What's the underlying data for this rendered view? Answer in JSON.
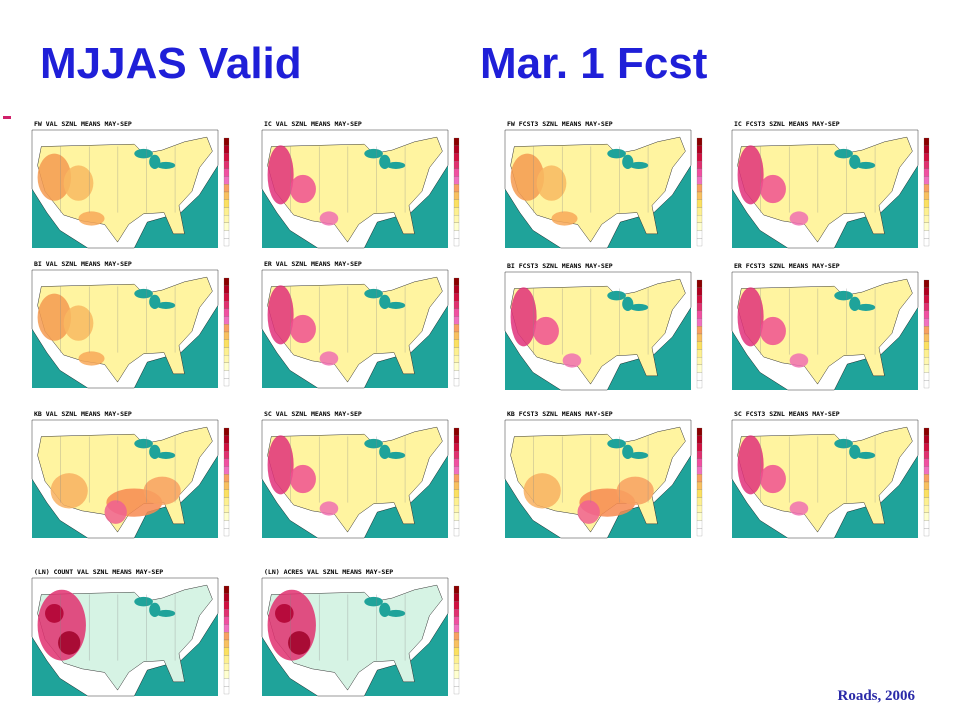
{
  "header": {
    "left_title": "MJJAS Valid",
    "right_title": "Mar. 1 Fcst"
  },
  "panels": {
    "valid": [
      "FW VAL SZNL MEANS MAY-SEP",
      "IC VAL SZNL MEANS MAY-SEP",
      "BI VAL SZNL MEANS MAY-SEP",
      "ER VAL SZNL MEANS MAY-SEP",
      "KB VAL SZNL MEANS MAY-SEP",
      "SC VAL SZNL MEANS MAY-SEP",
      "(LN) COUNT VAL SZNL MEANS MAY-SEP",
      "(LN) ACRES VAL SZNL MEANS MAY-SEP"
    ],
    "forecast": [
      "FW FCST3 SZNL MEANS MAY-SEP",
      "IC FCST3 SZNL MEANS MAY-SEP",
      "BI FCST3 SZNL MEANS MAY-SEP",
      "ER FCST3 SZNL MEANS MAY-SEP",
      "KB FCST3 SZNL MEANS MAY-SEP",
      "SC FCST3 SZNL MEANS MAY-SEP"
    ]
  },
  "footer": "Roads, 2006"
}
